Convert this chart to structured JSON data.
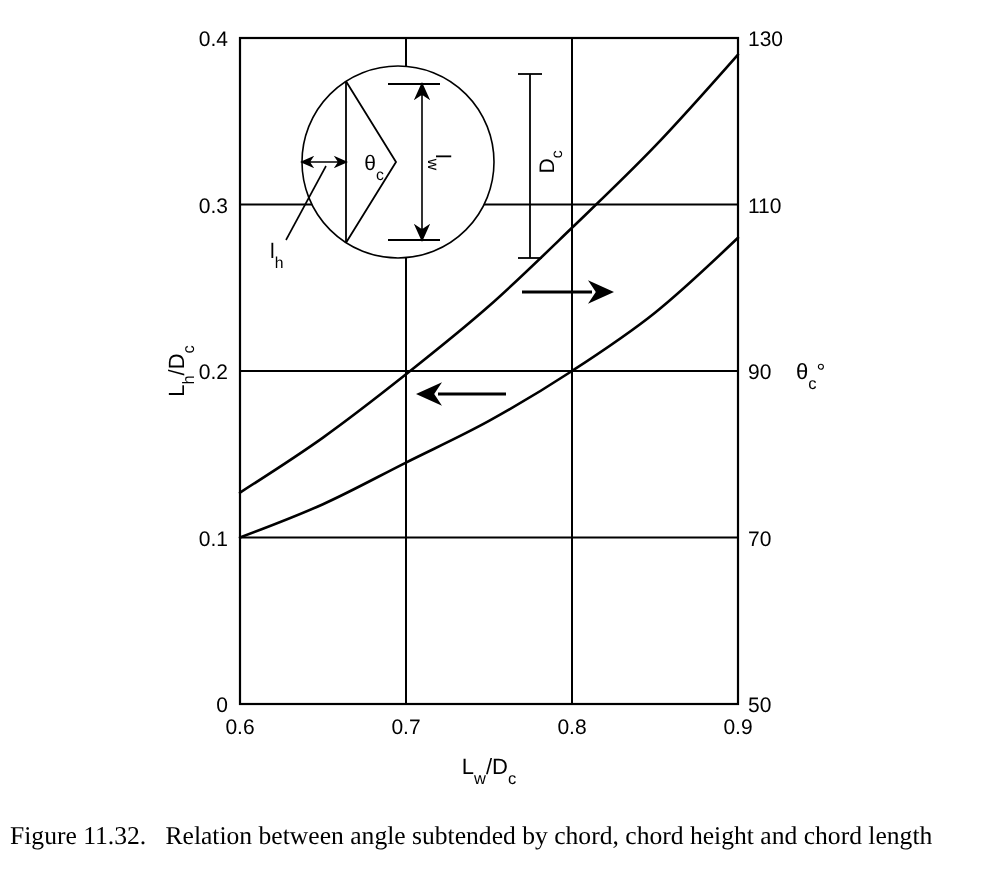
{
  "chart_data": {
    "type": "line",
    "xlabel": "L$_{w}$/D$_{c}$",
    "ylabel": "L$_{h}$/D$_{c}$",
    "y2label": "θ$_{c}$°",
    "x": [
      0.6,
      0.65,
      0.7,
      0.75,
      0.8,
      0.85,
      0.9
    ],
    "series": [
      {
        "color": "#000000",
        "values": [
          0.1,
          0.12,
          0.145,
          0.17,
          0.2,
          0.235,
          0.28
        ]
      },
      {
        "color": "#000000",
        "axis": "y2",
        "values": [
          75.4,
          82,
          89.6,
          97.8,
          107.2,
          117,
          128
        ]
      }
    ],
    "xlim": [
      0.6,
      0.9
    ],
    "xticks": [
      0.6,
      0.7,
      0.8,
      0.9
    ],
    "ylim": [
      0,
      0.4
    ],
    "yticks": [
      0,
      0.1,
      0.2,
      0.3,
      0.4
    ],
    "y2lim": [
      50,
      130
    ],
    "y2ticks": [
      50,
      70,
      90,
      110,
      130
    ],
    "grid": true,
    "annotations": [
      "l$_{h}$",
      "θ$_{c}$",
      "l$_{w}$",
      "D$_{c}$",
      "Figure 11.32.   Relation between angle subtended by chord, chord height and chord length"
    ]
  }
}
